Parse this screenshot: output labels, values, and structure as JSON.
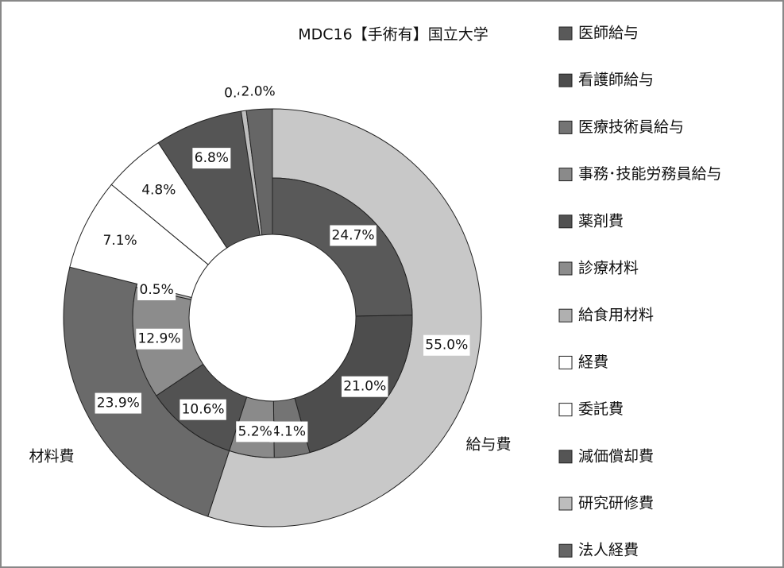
{
  "chart_data": {
    "type": "nested-donut",
    "title": "MDC16【手術有】国立大学",
    "segments": [
      {
        "name": "給与費",
        "value": 55.0,
        "value_label": "55.0%",
        "color": "#c8c8c8",
        "children": [
          {
            "name": "医師給与",
            "value": 24.7,
            "value_label": "24.7%",
            "color": "#595959"
          },
          {
            "name": "看護師給与",
            "value": 21.0,
            "value_label": "21.0%",
            "color": "#4d4d4d"
          },
          {
            "name": "医療技術員給与",
            "value": 4.1,
            "value_label": "4.1%",
            "color": "#747474"
          },
          {
            "name": "事務･技能労務員給与",
            "value": 5.2,
            "value_label": "5.2%",
            "color": "#8a8a8a"
          }
        ]
      },
      {
        "name": "材料費",
        "value": 23.9,
        "value_label": "23.9%",
        "color": "#6a6a6a",
        "children": [
          {
            "name": "薬剤費",
            "value": 10.6,
            "value_label": "10.6%",
            "color": "#525252"
          },
          {
            "name": "診療材料",
            "value": 12.9,
            "value_label": "12.9%",
            "color": "#8c8c8c"
          },
          {
            "name": "給食用材料",
            "value": 0.5,
            "value_label": "0.5%",
            "color": "#b0b0b0"
          }
        ]
      },
      {
        "name": "経費",
        "value": 7.1,
        "value_label": "7.1%",
        "color": "#ffffff"
      },
      {
        "name": "委託費",
        "value": 4.8,
        "value_label": "4.8%",
        "color": "#ffffff"
      },
      {
        "name": "減価償却費",
        "value": 6.8,
        "value_label": "6.8%",
        "color": "#555555"
      },
      {
        "name": "研究研修費",
        "value": 0.4,
        "value_label": "0.4%",
        "color": "#bdbdbd"
      },
      {
        "name": "法人経費",
        "value": 2.0,
        "value_label": "2.0%",
        "color": "#666666"
      }
    ]
  }
}
